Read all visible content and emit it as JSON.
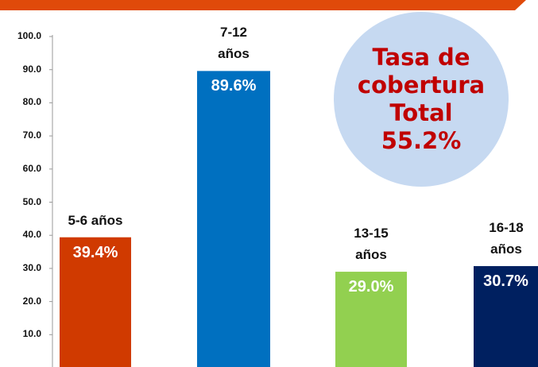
{
  "chart_data": {
    "type": "bar",
    "categories": [
      "5-6 años",
      "7-12 años",
      "13-15 años",
      "16-18 años"
    ],
    "values": [
      39.4,
      89.6,
      29.0,
      30.7
    ],
    "value_labels": [
      "39.4%",
      "89.6%",
      "29.0%",
      "30.7%"
    ],
    "colors": [
      "#d03a00",
      "#0070c0",
      "#92d050",
      "#002060"
    ],
    "ylim": [
      0,
      100
    ],
    "yticks": [
      {
        "value": 10,
        "label": "10.0"
      },
      {
        "value": 20,
        "label": "20.0"
      },
      {
        "value": 30,
        "label": "30.0"
      },
      {
        "value": 40,
        "label": "40.0"
      },
      {
        "value": 50,
        "label": "50.0"
      },
      {
        "value": 60,
        "label": "60.0"
      },
      {
        "value": 70,
        "label": "70.0"
      },
      {
        "value": 80,
        "label": "80.0"
      },
      {
        "value": 90,
        "label": "90.0"
      },
      {
        "value": 100,
        "label": "100.0"
      }
    ],
    "annotation": "Tasa de cobertura Total 55.2%"
  }
}
